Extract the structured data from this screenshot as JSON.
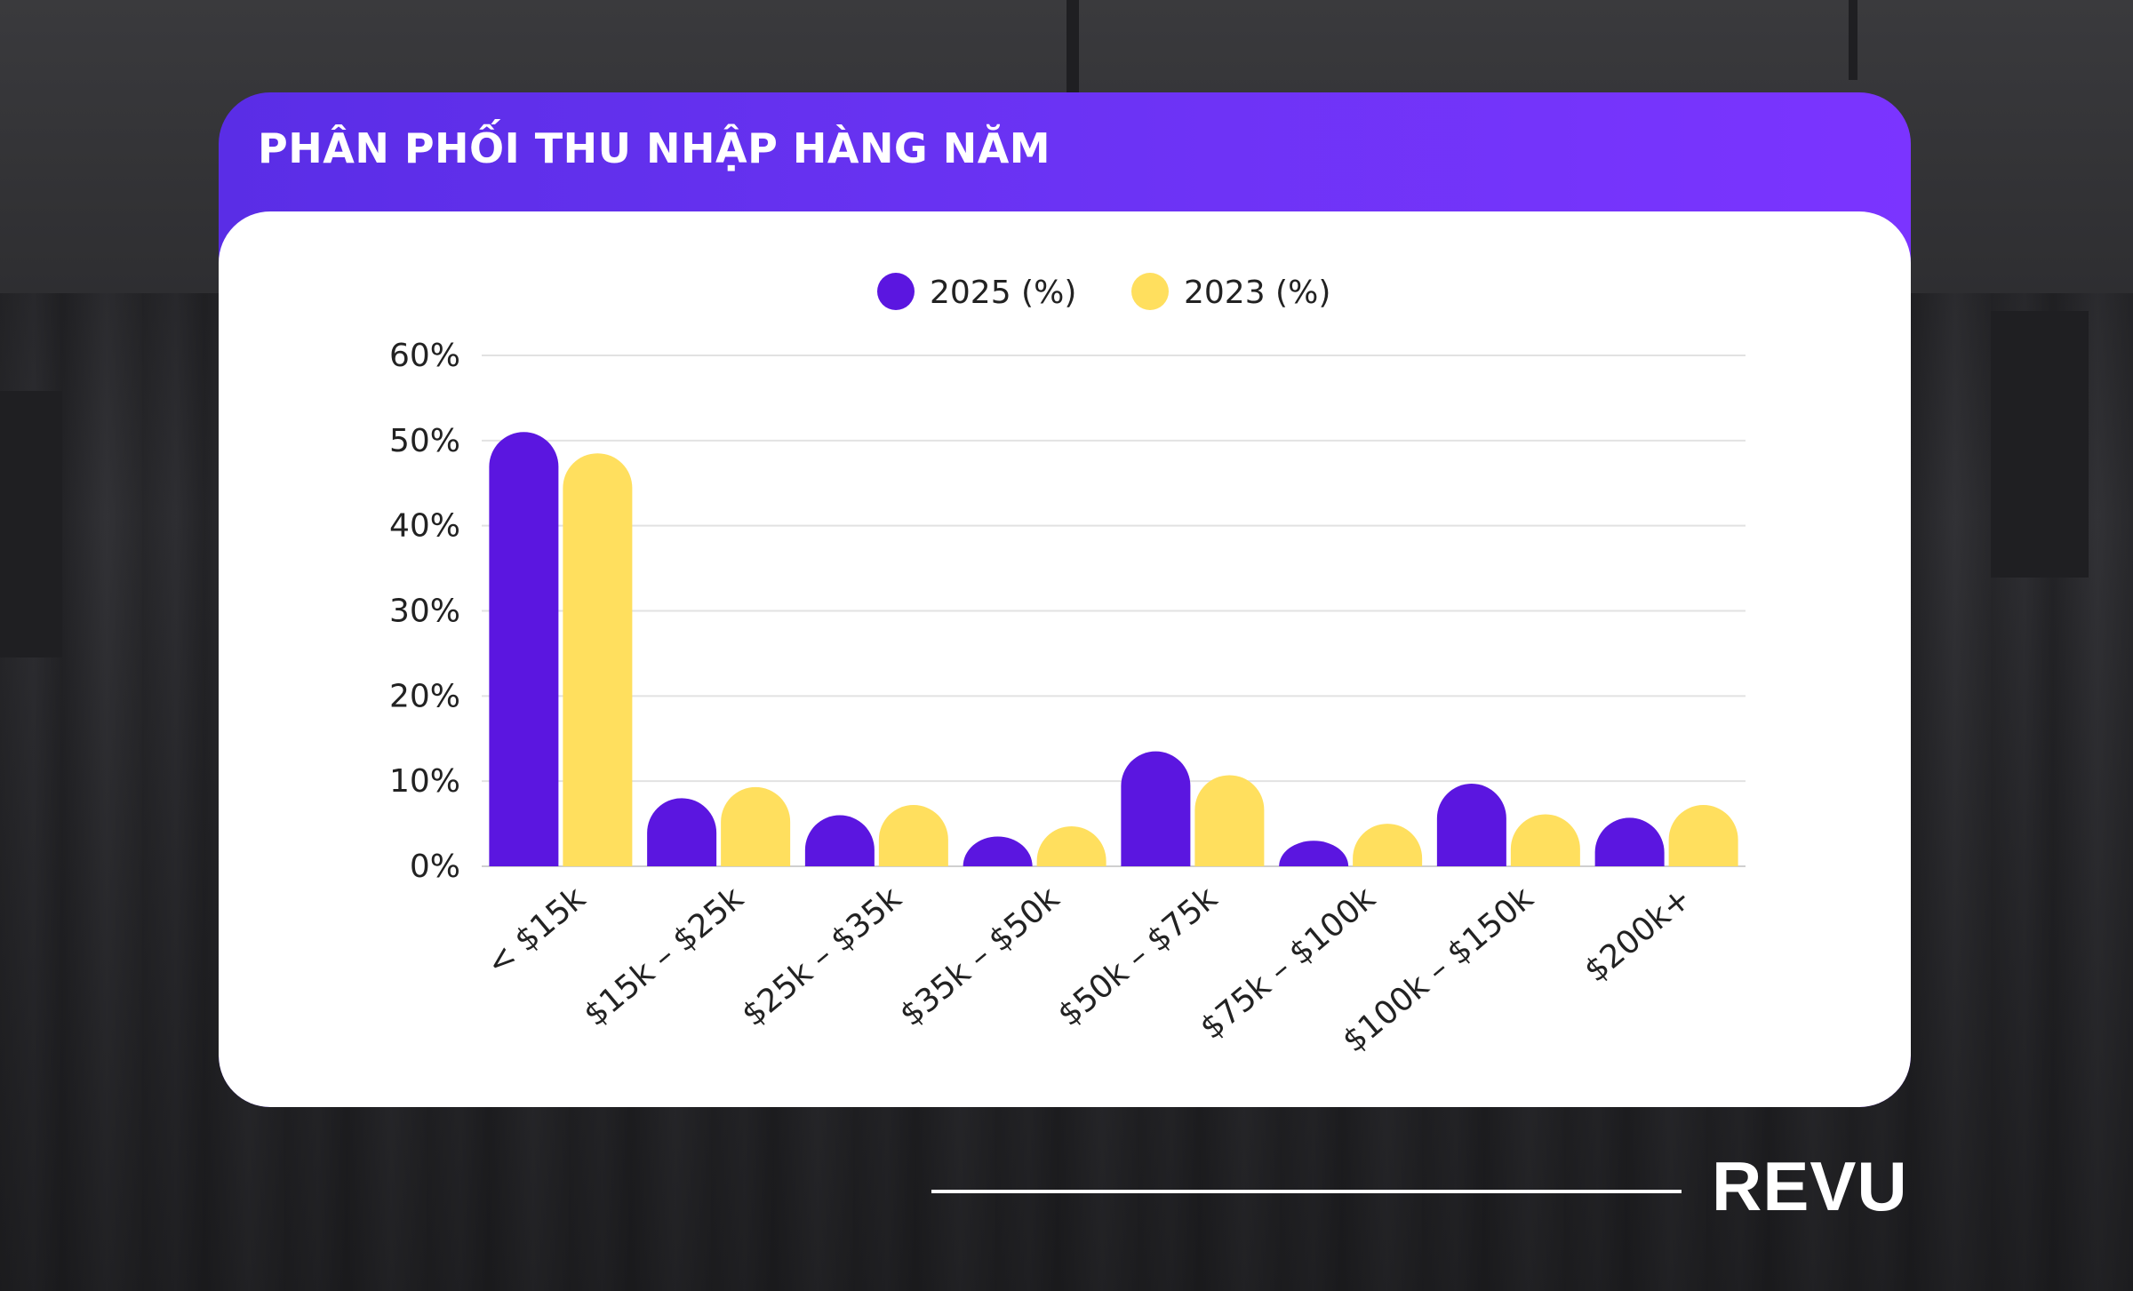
{
  "title": "PHÂN PHỐI THU NHẬP HÀNG NĂM",
  "brand": "REVU",
  "colors": {
    "series_2025": "#5b16e0",
    "series_2023": "#ffdf5e",
    "header": "#6b33f4"
  },
  "chart_data": {
    "type": "bar",
    "categories": [
      "< $15k",
      "$15k – $25k",
      "$25k – $35k",
      "$35k – $50k",
      "$50k – $75k",
      "$75k – $100k",
      "$100k – $150k",
      "$200k+"
    ],
    "series": [
      {
        "name": "2025 (%)",
        "values": [
          51,
          8,
          6,
          3.5,
          13.5,
          3,
          9.7,
          5.7
        ]
      },
      {
        "name": "2023 (%)",
        "values": [
          48.5,
          9.3,
          7.2,
          4.7,
          10.7,
          5,
          6.1,
          7.2
        ]
      }
    ],
    "ylim": [
      0,
      60
    ],
    "yticks": [
      "0%",
      "10%",
      "20%",
      "30%",
      "40%",
      "50%",
      "60%"
    ],
    "legend": "top-center",
    "grid": true
  }
}
